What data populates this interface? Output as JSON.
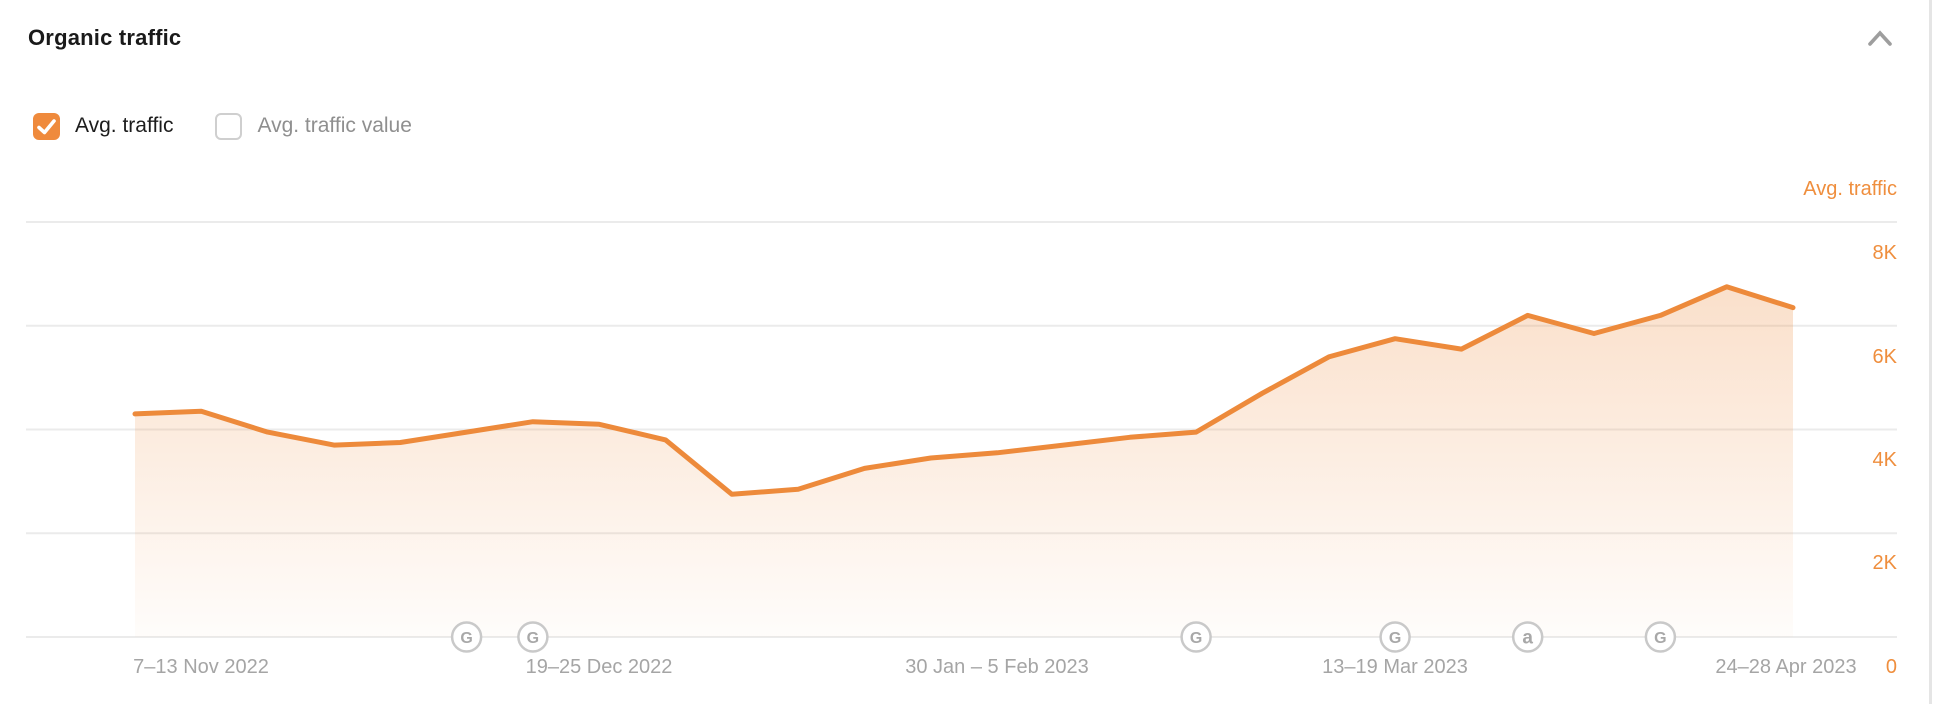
{
  "header": {
    "title": "Organic traffic"
  },
  "legend": {
    "items": [
      {
        "label": "Avg. traffic",
        "checked": true
      },
      {
        "label": "Avg. traffic value",
        "checked": false
      }
    ]
  },
  "axis": {
    "right_title": "Avg. traffic",
    "zero_label": "0"
  },
  "colors": {
    "accent": "#ED8A3B",
    "axis_label_orange": "#EF8E3D",
    "grid": "#EBEBEB",
    "text_dark": "#1A1A1A",
    "text_gray": "#A5A5A5",
    "marker_stroke": "#C9C9C9",
    "marker_text": "#A8A8A8",
    "chevron": "#9E9E9E"
  },
  "chart_data": {
    "type": "area",
    "title": "Organic traffic",
    "xlabel": "",
    "ylabel": "Avg. traffic",
    "ylim": [
      0,
      8000
    ],
    "grid": true,
    "legend_position": "top-left-checkboxes",
    "y_tick_labels": [
      "8K",
      "6K",
      "4K",
      "2K"
    ],
    "x_tick_labels": [
      "7–13 Nov 2022",
      "19–25 Dec 2022",
      "30 Jan – 5 Feb 2023",
      "13–19 Mar 2023",
      "24–28 Apr 2023"
    ],
    "x_tick_indices": [
      1,
      7,
      13,
      19,
      25
    ],
    "series": [
      {
        "name": "Avg. traffic",
        "values": [
          4300,
          4350,
          3950,
          3700,
          3750,
          3950,
          4150,
          4100,
          3800,
          2750,
          2850,
          3250,
          3450,
          3550,
          3700,
          3850,
          3950,
          4700,
          5400,
          5750,
          5550,
          6200,
          5850,
          6200,
          6750,
          6350
        ]
      }
    ],
    "event_markers": [
      {
        "index": 5,
        "glyph": "G"
      },
      {
        "index": 6,
        "glyph": "G"
      },
      {
        "index": 16,
        "glyph": "G"
      },
      {
        "index": 19,
        "glyph": "G"
      },
      {
        "index": 21,
        "glyph": "a"
      },
      {
        "index": 23,
        "glyph": "G"
      }
    ]
  }
}
